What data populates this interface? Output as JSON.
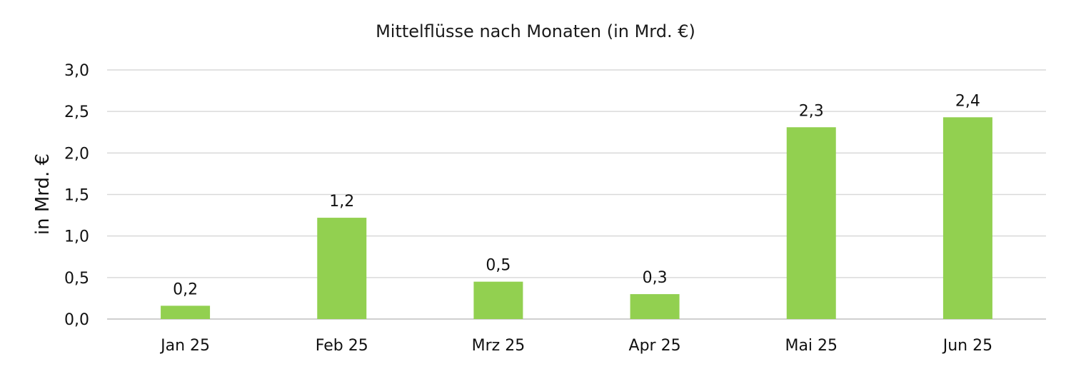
{
  "chart_data": {
    "type": "bar",
    "title": "Mittelflüsse nach Monaten (in Mrd. €)",
    "xlabel": "",
    "ylabel": "in Mrd. €",
    "categories": [
      "Jan 25",
      "Feb 25",
      "Mrz 25",
      "Apr 25",
      "Mai 25",
      "Jun 25"
    ],
    "values": [
      0.16,
      1.22,
      0.45,
      0.3,
      2.31,
      2.43
    ],
    "value_labels": [
      "0,2",
      "1,2",
      "0,5",
      "0,3",
      "2,3",
      "2,4"
    ],
    "ylim": [
      0,
      3
    ],
    "yticks": [
      0,
      0.5,
      1,
      1.5,
      2,
      2.5,
      3
    ],
    "ytick_labels": [
      "0,0",
      "0,5",
      "1,0",
      "1,5",
      "2,0",
      "2,5",
      "3,0"
    ],
    "grid": true,
    "legend": "none",
    "bar_color": "#92d050"
  }
}
